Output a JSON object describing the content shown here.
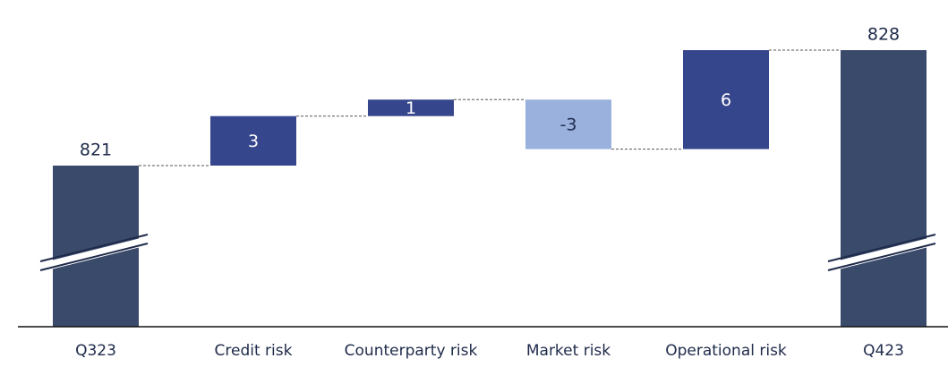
{
  "chart_data": {
    "type": "waterfall",
    "categories": [
      "Q323",
      "Credit risk",
      "Counterparty risk",
      "Market risk",
      "Operational risk",
      "Q423"
    ],
    "values": [
      821,
      3,
      1,
      -3,
      6,
      828
    ],
    "totals": [
      true,
      false,
      false,
      false,
      false,
      true
    ],
    "colors": {
      "total": "#3a4a6b",
      "increase": "#36468c",
      "decrease": "#9ab1dd"
    }
  }
}
